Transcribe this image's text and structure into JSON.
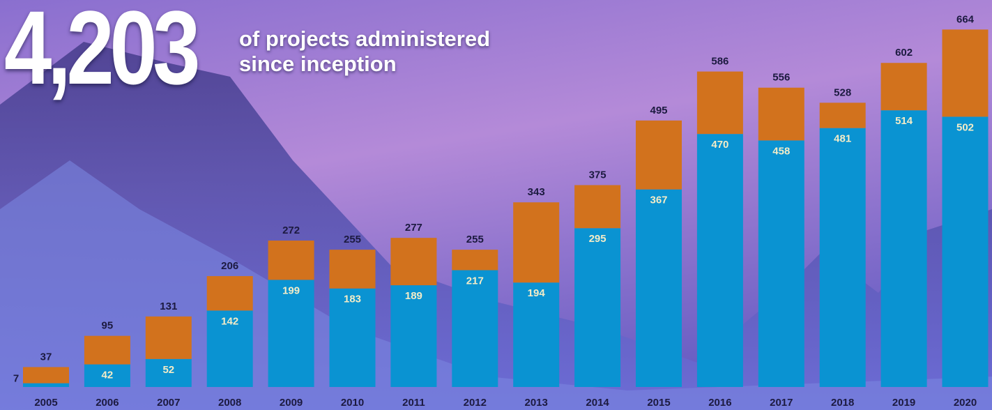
{
  "headline": {
    "value": "4,203",
    "text": "of projects administered since inception"
  },
  "chart_data": {
    "type": "stacked-bar",
    "categories": [
      "2005",
      "2006",
      "2007",
      "2008",
      "2009",
      "2010",
      "2011",
      "2012",
      "2013",
      "2014",
      "2015",
      "2016",
      "2017",
      "2018",
      "2019",
      "2020"
    ],
    "series": [
      {
        "color": "#0a93d2",
        "values": [
          7,
          42,
          52,
          142,
          199,
          183,
          189,
          217,
          194,
          295,
          367,
          470,
          458,
          481,
          514,
          502
        ]
      },
      {
        "color": "#d2721d",
        "values": [
          30,
          53,
          79,
          64,
          73,
          72,
          88,
          38,
          149,
          80,
          128,
          116,
          98,
          47,
          88,
          162
        ]
      }
    ],
    "totals": [
      37,
      95,
      131,
      206,
      272,
      255,
      277,
      255,
      343,
      375,
      495,
      586,
      556,
      528,
      602,
      664
    ],
    "ylim": [
      0,
      680
    ]
  }
}
